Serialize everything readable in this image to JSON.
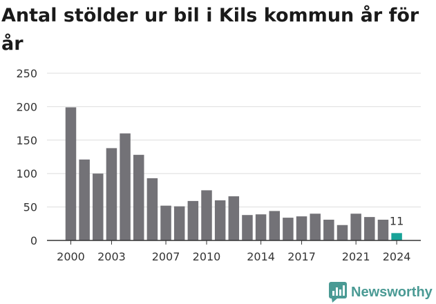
{
  "chart_data": {
    "type": "bar",
    "title": "Antal stölder ur bil i Kils kommun år för år",
    "xlabel": "",
    "ylabel": "",
    "categories": [
      "2000",
      "2001",
      "2002",
      "2003",
      "2004",
      "2005",
      "2006",
      "2007",
      "2008",
      "2009",
      "2010",
      "2011",
      "2012",
      "2013",
      "2014",
      "2015",
      "2016",
      "2017",
      "2018",
      "2019",
      "2020",
      "2021",
      "2022",
      "2023",
      "2024"
    ],
    "values": [
      199,
      121,
      100,
      138,
      160,
      128,
      93,
      52,
      51,
      59,
      75,
      60,
      66,
      38,
      39,
      44,
      34,
      36,
      40,
      31,
      23,
      40,
      35,
      31,
      11
    ],
    "x_tick_labels": [
      "2000",
      "2003",
      "2007",
      "2010",
      "2014",
      "2017",
      "2021",
      "2024"
    ],
    "y_ticks": [
      "0",
      "50",
      "100",
      "150",
      "200",
      "250"
    ],
    "ylim": [
      0,
      250
    ],
    "grid": true,
    "legend": "none",
    "highlight_last": true,
    "highlight_label": "11",
    "colors": {
      "bar": "#737277",
      "highlight": "#18a398",
      "grid": "#dddddd",
      "axis": "#333333"
    }
  },
  "branding": {
    "logo_text": "Newsworthy",
    "logo_icon": "newsworthy-chat-bars-icon",
    "logo_color": "#4a9a94"
  }
}
